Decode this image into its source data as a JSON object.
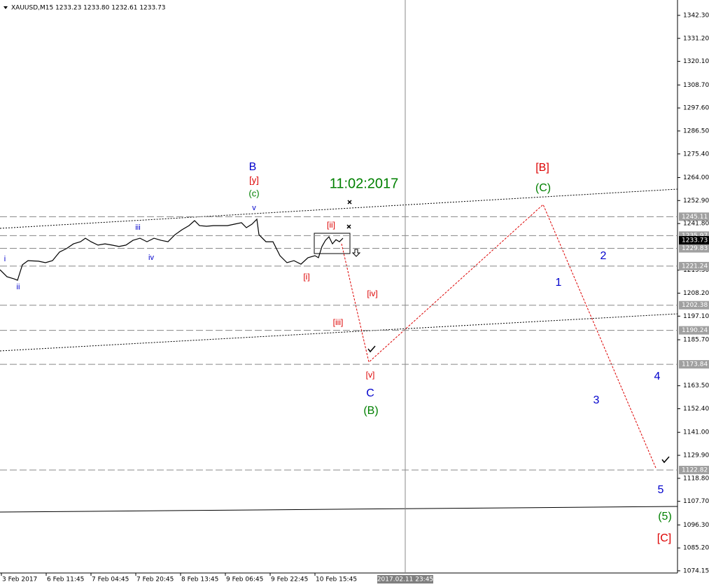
{
  "chart_data": {
    "type": "line",
    "title": "XAUUSD,M15  1233.23 1233.80 1232.61 1233.73",
    "color": "#000000",
    "x": [
      0,
      10,
      20,
      25,
      32,
      40,
      55,
      65,
      75,
      85,
      95,
      105,
      115,
      122,
      130,
      140,
      150,
      160,
      170,
      180,
      190,
      200,
      210,
      220,
      230,
      240,
      250,
      260,
      270,
      278,
      285,
      295,
      305,
      315,
      325,
      335,
      345,
      352,
      360,
      367,
      370,
      380,
      390,
      400,
      410,
      420,
      430,
      440,
      450,
      455,
      460,
      465,
      470,
      475,
      480,
      485,
      490
    ],
    "values": [
      1219.5,
      1216.1,
      1215.1,
      1214.4,
      1221.9,
      1223.9,
      1223.6,
      1222.9,
      1223.9,
      1228.0,
      1229.7,
      1232.0,
      1233.0,
      1234.7,
      1233.0,
      1231.4,
      1232.0,
      1231.4,
      1230.7,
      1231.4,
      1233.7,
      1234.7,
      1233.0,
      1234.7,
      1233.7,
      1233.0,
      1236.4,
      1238.8,
      1240.8,
      1243.2,
      1240.8,
      1240.5,
      1240.8,
      1240.8,
      1240.8,
      1241.5,
      1242.2,
      1239.8,
      1241.5,
      1243.9,
      1236.4,
      1233.0,
      1233.0,
      1226.3,
      1222.9,
      1223.9,
      1222.2,
      1225.3,
      1226.3,
      1225.3,
      1230.7,
      1233.7,
      1235.4,
      1232.0,
      1234.0,
      1233.0,
      1234.7
    ],
    "xlim": [
      0,
      968
    ],
    "ylim": [
      1073.1,
      1348.7
    ],
    "xticks": [
      {
        "value": 2,
        "label": "3 Feb 2017"
      },
      {
        "value": 66,
        "label": "6 Feb 11:45"
      },
      {
        "value": 130,
        "label": "7 Feb 04:45"
      },
      {
        "value": 194,
        "label": "7 Feb 20:45"
      },
      {
        "value": 258,
        "label": "8 Feb 13:45"
      },
      {
        "value": 322,
        "label": "9 Feb 06:45"
      },
      {
        "value": 386,
        "label": "9 Feb 22:45"
      },
      {
        "value": 450,
        "label": "10 Feb 15:45"
      }
    ],
    "yticks": [
      {
        "value": 1342.3,
        "label": "1342.30"
      },
      {
        "value": 1331.2,
        "label": "1331.20"
      },
      {
        "value": 1320.1,
        "label": "1320.10"
      },
      {
        "value": 1308.7,
        "label": "1308.70"
      },
      {
        "value": 1297.6,
        "label": "1297.60"
      },
      {
        "value": 1286.5,
        "label": "1286.50"
      },
      {
        "value": 1275.4,
        "label": "1275.40"
      },
      {
        "value": 1264,
        "label": "1264.00"
      },
      {
        "value": 1252.9,
        "label": "1252.90"
      },
      {
        "value": 1241.8,
        "label": "1241.80"
      },
      {
        "value": 1219.3,
        "label": "1219.30"
      },
      {
        "value": 1208.2,
        "label": "1208.20"
      },
      {
        "value": 1197.1,
        "label": "1197.10"
      },
      {
        "value": 1185.7,
        "label": "1185.70"
      },
      {
        "value": 1163.5,
        "label": "1163.50"
      },
      {
        "value": 1152.4,
        "label": "1152.40"
      },
      {
        "value": 1141,
        "label": "1141.00"
      },
      {
        "value": 1129.9,
        "label": "1129.90"
      },
      {
        "value": 1118.8,
        "label": "1118.80"
      },
      {
        "value": 1107.7,
        "label": "1107.70"
      },
      {
        "value": 1096.3,
        "label": "1096.30"
      },
      {
        "value": 1085.2,
        "label": "1085.20"
      },
      {
        "value": 1074.15,
        "label": "1074.15"
      }
    ],
    "levels": [
      1245.11,
      1235.97,
      1229.83,
      1221.24,
      1202.38,
      1190.24,
      1173.84,
      1122.82
    ],
    "last_price": 1233.73,
    "crosshair": {
      "value": 579,
      "label": "2017.02.11 23:45"
    },
    "annotations": [
      {
        "text": "i",
        "color": "#0000cc"
      },
      {
        "text": "ii",
        "color": "#0000cc"
      },
      {
        "text": "iii",
        "color": "#0000cc"
      },
      {
        "text": "iv",
        "color": "#0000cc"
      },
      {
        "text": "v",
        "color": "#0000cc"
      },
      {
        "text": "B",
        "color": "#0000cc"
      },
      {
        "text": "[y]",
        "color": "#dd0000"
      },
      {
        "text": "(c)",
        "color": "#008000"
      },
      {
        "text": "11:02:2017",
        "color": "#008000"
      },
      {
        "text": "[ii]",
        "color": "#dd0000"
      },
      {
        "text": "[i]",
        "color": "#dd0000"
      },
      {
        "text": "[iv]",
        "color": "#dd0000"
      },
      {
        "text": "[iii]",
        "color": "#dd0000"
      },
      {
        "text": "[v]",
        "color": "#dd0000"
      },
      {
        "text": "C",
        "color": "#0000cc"
      },
      {
        "text": "(B)",
        "color": "#008000"
      },
      {
        "text": "[B]",
        "color": "#dd0000"
      },
      {
        "text": "(C)",
        "color": "#008000"
      },
      {
        "text": "2",
        "color": "#0000cc"
      },
      {
        "text": "1",
        "color": "#0000cc"
      },
      {
        "text": "4",
        "color": "#0000cc"
      },
      {
        "text": "3",
        "color": "#0000cc"
      },
      {
        "text": "5",
        "color": "#0000cc"
      },
      {
        "text": "(5)",
        "color": "#008000"
      },
      {
        "text": "[C]",
        "color": "#dd0000"
      }
    ]
  }
}
